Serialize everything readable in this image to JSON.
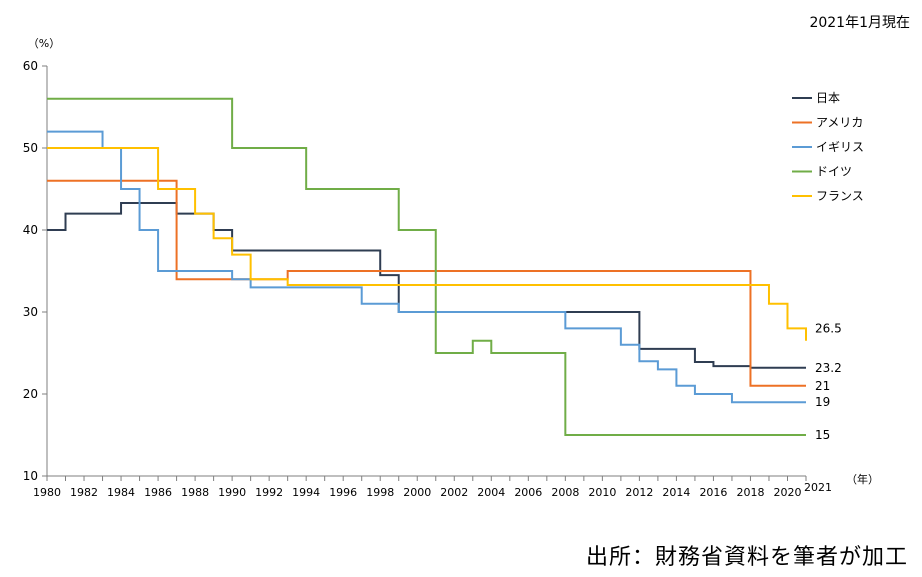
{
  "header": {
    "note": "2021年1月現在"
  },
  "footer": {
    "source": "出所：財務省資料を筆者が加工"
  },
  "chart_data": {
    "type": "line",
    "step": true,
    "title": "",
    "ylabel": "（%）",
    "xlabel": "（年）",
    "ylim": [
      10,
      60
    ],
    "yticks": [
      10,
      20,
      30,
      40,
      50,
      60
    ],
    "xlim": [
      1980,
      2021
    ],
    "xticks": [
      1980,
      1982,
      1984,
      1986,
      1988,
      1990,
      1992,
      1994,
      1996,
      1998,
      2000,
      2002,
      2004,
      2006,
      2008,
      2010,
      2012,
      2014,
      2016,
      2018,
      2020
    ],
    "xtick_extra": "2021",
    "grid": false,
    "legend": "top-right",
    "series": [
      {
        "name": "日本",
        "color": "#2f3d52",
        "end_label": "23.2",
        "points": [
          [
            1980,
            40
          ],
          [
            1981,
            42
          ],
          [
            1984,
            43.3
          ],
          [
            1987,
            42
          ],
          [
            1989,
            40
          ],
          [
            1990,
            37.5
          ],
          [
            1998,
            34.5
          ],
          [
            1999,
            30
          ],
          [
            2012,
            25.5
          ],
          [
            2015,
            23.9
          ],
          [
            2016,
            23.4
          ],
          [
            2018,
            23.2
          ],
          [
            2021,
            23.2
          ]
        ]
      },
      {
        "name": "アメリカ",
        "color": "#ed7125",
        "end_label": "21",
        "points": [
          [
            1980,
            46
          ],
          [
            1987,
            34
          ],
          [
            1993,
            35
          ],
          [
            2018,
            21
          ],
          [
            2021,
            21
          ]
        ]
      },
      {
        "name": "イギリス",
        "color": "#5b9bd5",
        "end_label": "19",
        "points": [
          [
            1980,
            52
          ],
          [
            1983,
            50
          ],
          [
            1984,
            45
          ],
          [
            1985,
            40
          ],
          [
            1986,
            35
          ],
          [
            1990,
            34
          ],
          [
            1991,
            33
          ],
          [
            1997,
            31
          ],
          [
            1999,
            30
          ],
          [
            2008,
            28
          ],
          [
            2011,
            26
          ],
          [
            2012,
            24
          ],
          [
            2013,
            23
          ],
          [
            2014,
            21
          ],
          [
            2015,
            20
          ],
          [
            2017,
            19
          ],
          [
            2021,
            19
          ]
        ]
      },
      {
        "name": "ドイツ",
        "color": "#70ad47",
        "end_label": "15",
        "points": [
          [
            1980,
            56
          ],
          [
            1990,
            50
          ],
          [
            1994,
            45
          ],
          [
            1999,
            40
          ],
          [
            2001,
            25
          ],
          [
            2003,
            26.5
          ],
          [
            2004,
            25
          ],
          [
            2008,
            15
          ],
          [
            2021,
            15
          ]
        ]
      },
      {
        "name": "フランス",
        "color": "#ffc000",
        "end_label": "26.5",
        "points": [
          [
            1980,
            50
          ],
          [
            1986,
            45
          ],
          [
            1988,
            42
          ],
          [
            1989,
            39
          ],
          [
            1990,
            37
          ],
          [
            1991,
            34
          ],
          [
            1993,
            33.3
          ],
          [
            2019,
            31
          ],
          [
            2020,
            28
          ],
          [
            2021,
            26.5
          ]
        ]
      }
    ]
  }
}
